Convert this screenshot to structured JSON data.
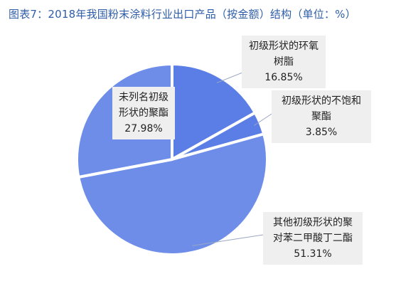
{
  "title": "图表7：2018年我国粉末涂料行业出口产品（按金额）结构（单位：%）",
  "chart_data": {
    "type": "pie",
    "title": "图表7：2018年我国粉末涂料行业出口产品（按金额）结构（单位：%）",
    "slices": [
      {
        "label": "初级形状的环氧树脂",
        "value": 16.85,
        "value_label": "16.85%",
        "color": "#5b7ee6"
      },
      {
        "label": "初级形状的不饱和聚酯",
        "value": 3.85,
        "value_label": "3.85%",
        "color": "#5b7ee6"
      },
      {
        "label": "其他初级形状的聚对苯二甲酸丁二酯",
        "value": 51.31,
        "value_label": "51.31%",
        "color": "#6d8de9"
      },
      {
        "label": "未列名初级形状的聚酯",
        "value": 27.98,
        "value_label": "27.98%",
        "color": "#6d8de9"
      }
    ],
    "start_angle_deg": 0,
    "direction": "clockwise"
  }
}
